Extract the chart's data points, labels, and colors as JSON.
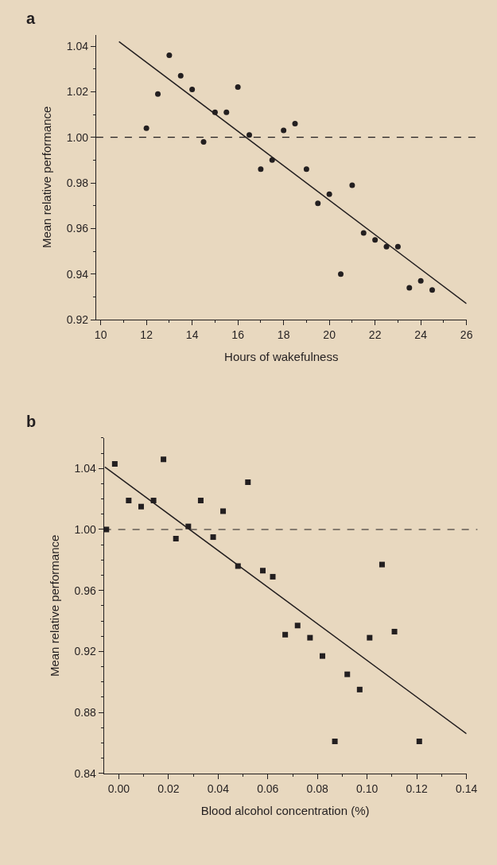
{
  "chart_data": [
    {
      "type": "scatter",
      "title": "a",
      "xlabel": "Hours of wakefulness",
      "ylabel": "Mean relative performance",
      "marker": "circle",
      "grid": false,
      "xlim": [
        9.8,
        26
      ],
      "xticks": [
        10,
        12,
        14,
        16,
        18,
        20,
        22,
        24,
        26
      ],
      "ylim": [
        0.92,
        1.045
      ],
      "yticks": [
        0.92,
        0.94,
        0.96,
        0.98,
        {
          "value": 1.0,
          "label": "1.00"
        },
        1.02,
        1.04
      ],
      "ref_lines": [
        {
          "axis": "y",
          "value": 1.0,
          "color": "#231f20",
          "line_style": "dashed"
        }
      ],
      "series": [
        {
          "color": "#231f20",
          "x": [
            12,
            12.5,
            13,
            13.5,
            14,
            14.5,
            15,
            15.5,
            16,
            16.5,
            17,
            17.5,
            18,
            18.5,
            19,
            19.5,
            20,
            20.5,
            21,
            21.5,
            22,
            22.5,
            23,
            23.5,
            24,
            24.5
          ],
          "values": [
            1.004,
            1.019,
            1.036,
            1.027,
            1.021,
            0.998,
            1.011,
            1.011,
            1.022,
            1.001,
            0.986,
            0.99,
            1.003,
            1.006,
            0.986,
            0.971,
            0.975,
            0.94,
            0.979,
            0.958,
            0.955,
            0.952,
            0.952,
            0.934,
            0.937,
            0.933
          ]
        },
        {
          "type": "line",
          "marker": "none",
          "color": "#231f20",
          "x": [
            10.8,
            26
          ],
          "values": [
            1.042,
            0.927
          ]
        }
      ]
    },
    {
      "type": "scatter",
      "title": "b",
      "xlabel": "Blood alcohol concentration (%)",
      "ylabel": "Mean relative performance",
      "marker": "square",
      "grid": false,
      "xlim": [
        -0.006,
        0.14
      ],
      "xticks": [
        {
          "value": 0,
          "label": "0.00"
        },
        0.02,
        0.04,
        0.06,
        0.08,
        {
          "value": 0.1,
          "label": "0.10"
        },
        0.12,
        0.14
      ],
      "ylim": [
        0.84,
        1.06
      ],
      "yticks": [
        0.84,
        0.88,
        0.92,
        0.96,
        {
          "value": 1.0,
          "label": "1.00"
        },
        1.04
      ],
      "ref_lines": [
        {
          "axis": "y",
          "value": 1.0,
          "color": "#231f20",
          "line_style": "dashed"
        }
      ],
      "series": [
        {
          "color": "#231f20",
          "x": [
            -0.005,
            -0.0016,
            0.004,
            0.009,
            0.014,
            0.018,
            0.023,
            0.028,
            0.033,
            0.038,
            0.042,
            0.048,
            0.052,
            0.058,
            0.062,
            0.067,
            0.072,
            0.077,
            0.082,
            0.087,
            0.092,
            0.097,
            0.101,
            0.106,
            0.111,
            0.121
          ],
          "values": [
            1.0,
            1.043,
            1.019,
            1.015,
            1.019,
            1.046,
            0.994,
            1.002,
            1.019,
            0.995,
            1.012,
            0.976,
            1.031,
            0.973,
            0.969,
            0.931,
            0.937,
            0.929,
            0.917,
            0.861,
            0.905,
            0.895,
            0.929,
            0.977,
            0.933,
            0.861
          ]
        },
        {
          "type": "line",
          "marker": "none",
          "color": "#231f20",
          "x": [
            -0.0056,
            0.14
          ],
          "values": [
            1.041,
            0.866
          ]
        }
      ]
    }
  ]
}
